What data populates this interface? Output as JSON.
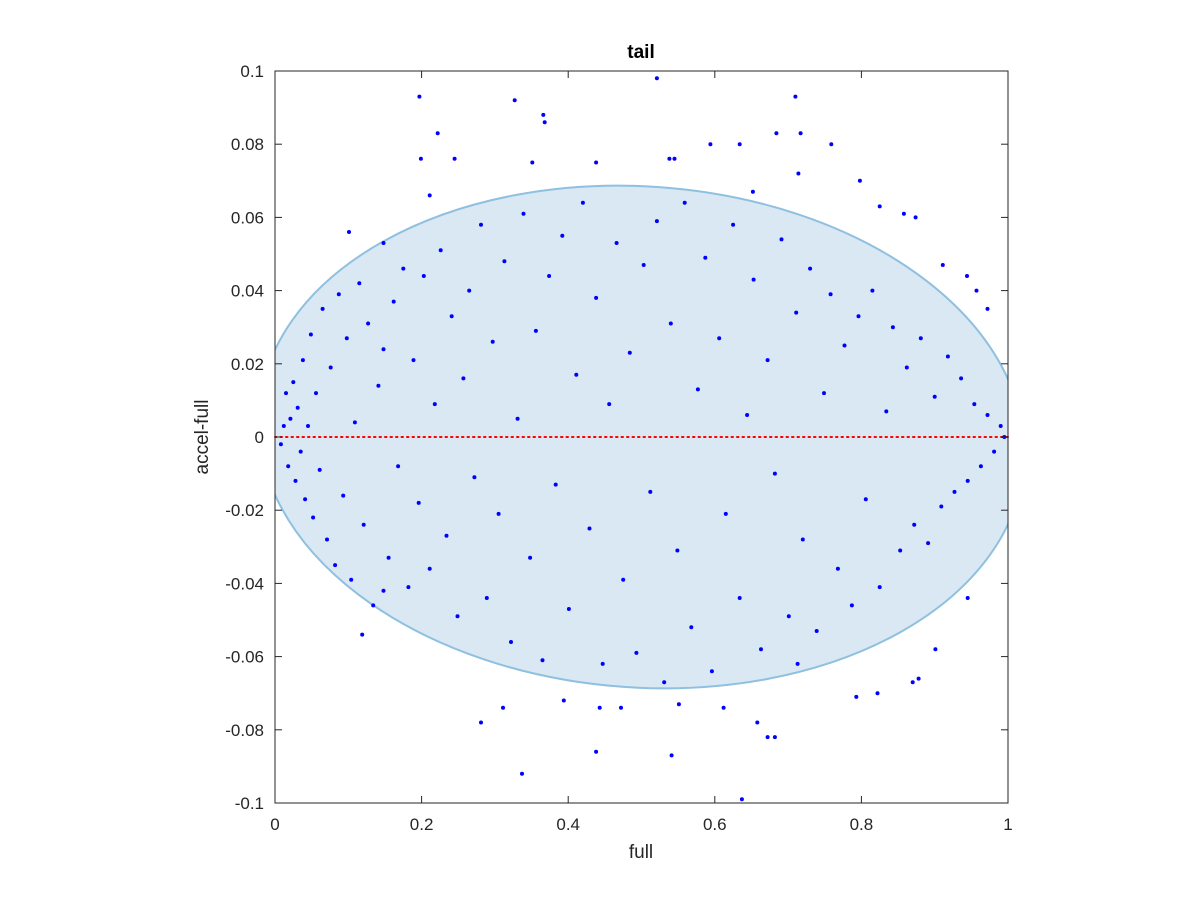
{
  "chart_data": {
    "type": "scatter",
    "title": "tail",
    "xlabel": "full",
    "ylabel": "accel-full",
    "xlim": [
      0,
      1
    ],
    "ylim": [
      -0.1,
      0.1
    ],
    "x_ticks": [
      0,
      0.2,
      0.4,
      0.6,
      0.8,
      1
    ],
    "x_tick_labels": [
      "0",
      "0.2",
      "0.4",
      "0.6",
      "0.8",
      "1"
    ],
    "y_ticks": [
      -0.1,
      -0.08,
      -0.06,
      -0.04,
      -0.02,
      0,
      0.02,
      0.04,
      0.06,
      0.08,
      0.1
    ],
    "y_tick_labels": [
      "-0.1",
      "-0.08",
      "-0.06",
      "-0.04",
      "-0.02",
      "0",
      "0.02",
      "0.04",
      "0.06",
      "0.08",
      "0.1"
    ],
    "grid": false,
    "box": true,
    "reference_line": {
      "y": 0,
      "style": "dotted",
      "color": "#ff0000"
    },
    "region": {
      "shape": "tilted-ellipse",
      "fill": "#d9e8f3",
      "stroke": "#8fc0df",
      "approx_top_at": [
        0.43,
        0.069
      ],
      "approx_bottom_at": [
        0.57,
        -0.069
      ],
      "approx_left_at": [
        0.0,
        0.007
      ],
      "approx_right_at": [
        1.0,
        -0.007
      ]
    },
    "series": [
      {
        "color": "#0000ff",
        "marker": "dot",
        "points": [
          [
            0.197,
            0.093
          ],
          [
            0.521,
            0.098
          ],
          [
            0.71,
            0.093
          ],
          [
            0.327,
            0.092
          ],
          [
            0.366,
            0.088
          ],
          [
            0.368,
            0.086
          ],
          [
            0.222,
            0.083
          ],
          [
            0.684,
            0.083
          ],
          [
            0.717,
            0.083
          ],
          [
            0.199,
            0.076
          ],
          [
            0.245,
            0.076
          ],
          [
            0.351,
            0.075
          ],
          [
            0.438,
            0.075
          ],
          [
            0.538,
            0.076
          ],
          [
            0.545,
            0.076
          ],
          [
            0.594,
            0.08
          ],
          [
            0.634,
            0.08
          ],
          [
            0.759,
            0.08
          ],
          [
            0.798,
            0.07
          ],
          [
            0.825,
            0.063
          ],
          [
            0.211,
            0.066
          ],
          [
            0.652,
            0.067
          ],
          [
            0.714,
            0.072
          ],
          [
            0.858,
            0.061
          ],
          [
            0.874,
            0.06
          ],
          [
            0.101,
            0.056
          ],
          [
            0.148,
            0.053
          ],
          [
            0.911,
            0.047
          ],
          [
            0.944,
            0.044
          ],
          [
            0.957,
            0.04
          ],
          [
            0.972,
            0.035
          ],
          [
            0.119,
            -0.054
          ],
          [
            0.148,
            -0.042
          ],
          [
            0.281,
            -0.078
          ],
          [
            0.311,
            -0.074
          ],
          [
            0.337,
            -0.092
          ],
          [
            0.394,
            -0.072
          ],
          [
            0.438,
            -0.086
          ],
          [
            0.443,
            -0.074
          ],
          [
            0.472,
            -0.074
          ],
          [
            0.541,
            -0.087
          ],
          [
            0.551,
            -0.073
          ],
          [
            0.612,
            -0.074
          ],
          [
            0.637,
            -0.099
          ],
          [
            0.658,
            -0.078
          ],
          [
            0.672,
            -0.082
          ],
          [
            0.682,
            -0.082
          ],
          [
            0.713,
            -0.062
          ],
          [
            0.793,
            -0.071
          ],
          [
            0.822,
            -0.07
          ],
          [
            0.87,
            -0.067
          ],
          [
            0.878,
            -0.066
          ],
          [
            0.901,
            -0.058
          ],
          [
            0.945,
            -0.044
          ],
          [
            0.008,
            -0.002
          ],
          [
            0.012,
            0.003
          ],
          [
            0.015,
            0.012
          ],
          [
            0.018,
            -0.008
          ],
          [
            0.021,
            0.005
          ],
          [
            0.025,
            0.015
          ],
          [
            0.028,
            -0.012
          ],
          [
            0.031,
            0.008
          ],
          [
            0.035,
            -0.004
          ],
          [
            0.038,
            0.021
          ],
          [
            0.041,
            -0.017
          ],
          [
            0.045,
            0.003
          ],
          [
            0.049,
            0.028
          ],
          [
            0.052,
            -0.022
          ],
          [
            0.056,
            0.012
          ],
          [
            0.061,
            -0.009
          ],
          [
            0.065,
            0.035
          ],
          [
            0.071,
            -0.028
          ],
          [
            0.076,
            0.019
          ],
          [
            0.082,
            -0.035
          ],
          [
            0.087,
            0.039
          ],
          [
            0.093,
            -0.016
          ],
          [
            0.098,
            0.027
          ],
          [
            0.104,
            -0.039
          ],
          [
            0.109,
            0.004
          ],
          [
            0.115,
            0.042
          ],
          [
            0.121,
            -0.024
          ],
          [
            0.127,
            0.031
          ],
          [
            0.134,
            -0.046
          ],
          [
            0.141,
            0.014
          ],
          [
            0.148,
            0.024
          ],
          [
            0.155,
            -0.033
          ],
          [
            0.162,
            0.037
          ],
          [
            0.168,
            -0.008
          ],
          [
            0.175,
            0.046
          ],
          [
            0.182,
            -0.041
          ],
          [
            0.189,
            0.021
          ],
          [
            0.196,
            -0.018
          ],
          [
            0.203,
            0.044
          ],
          [
            0.211,
            -0.036
          ],
          [
            0.218,
            0.009
          ],
          [
            0.226,
            0.051
          ],
          [
            0.234,
            -0.027
          ],
          [
            0.241,
            0.033
          ],
          [
            0.249,
            -0.049
          ],
          [
            0.257,
            0.016
          ],
          [
            0.265,
            0.04
          ],
          [
            0.272,
            -0.011
          ],
          [
            0.281,
            0.058
          ],
          [
            0.289,
            -0.044
          ],
          [
            0.297,
            0.026
          ],
          [
            0.305,
            -0.021
          ],
          [
            0.313,
            0.048
          ],
          [
            0.322,
            -0.056
          ],
          [
            0.331,
            0.005
          ],
          [
            0.339,
            0.061
          ],
          [
            0.348,
            -0.033
          ],
          [
            0.356,
            0.029
          ],
          [
            0.365,
            -0.061
          ],
          [
            0.374,
            0.044
          ],
          [
            0.383,
            -0.013
          ],
          [
            0.392,
            0.055
          ],
          [
            0.401,
            -0.047
          ],
          [
            0.411,
            0.017
          ],
          [
            0.42,
            0.064
          ],
          [
            0.429,
            -0.025
          ],
          [
            0.438,
            0.038
          ],
          [
            0.447,
            -0.062
          ],
          [
            0.456,
            0.009
          ],
          [
            0.466,
            0.053
          ],
          [
            0.475,
            -0.039
          ],
          [
            0.484,
            0.023
          ],
          [
            0.493,
            -0.059
          ],
          [
            0.503,
            0.047
          ],
          [
            0.512,
            -0.015
          ],
          [
            0.521,
            0.059
          ],
          [
            0.531,
            -0.067
          ],
          [
            0.54,
            0.031
          ],
          [
            0.549,
            -0.031
          ],
          [
            0.559,
            0.064
          ],
          [
            0.568,
            -0.052
          ],
          [
            0.577,
            0.013
          ],
          [
            0.587,
            0.049
          ],
          [
            0.596,
            -0.064
          ],
          [
            0.606,
            0.027
          ],
          [
            0.615,
            -0.021
          ],
          [
            0.625,
            0.058
          ],
          [
            0.634,
            -0.044
          ],
          [
            0.644,
            0.006
          ],
          [
            0.653,
            0.043
          ],
          [
            0.663,
            -0.058
          ],
          [
            0.672,
            0.021
          ],
          [
            0.682,
            -0.01
          ],
          [
            0.691,
            0.054
          ],
          [
            0.701,
            -0.049
          ],
          [
            0.711,
            0.034
          ],
          [
            0.72,
            -0.028
          ],
          [
            0.73,
            0.046
          ],
          [
            0.739,
            -0.053
          ],
          [
            0.749,
            0.012
          ],
          [
            0.758,
            0.039
          ],
          [
            0.768,
            -0.036
          ],
          [
            0.777,
            0.025
          ],
          [
            0.787,
            -0.046
          ],
          [
            0.796,
            0.033
          ],
          [
            0.806,
            -0.017
          ],
          [
            0.815,
            0.04
          ],
          [
            0.825,
            -0.041
          ],
          [
            0.834,
            0.007
          ],
          [
            0.843,
            0.03
          ],
          [
            0.853,
            -0.031
          ],
          [
            0.862,
            0.019
          ],
          [
            0.872,
            -0.024
          ],
          [
            0.881,
            0.027
          ],
          [
            0.891,
            -0.029
          ],
          [
            0.9,
            0.011
          ],
          [
            0.909,
            -0.019
          ],
          [
            0.918,
            0.022
          ],
          [
            0.927,
            -0.015
          ],
          [
            0.936,
            0.016
          ],
          [
            0.945,
            -0.012
          ],
          [
            0.954,
            0.009
          ],
          [
            0.963,
            -0.008
          ],
          [
            0.972,
            0.006
          ],
          [
            0.981,
            -0.004
          ],
          [
            0.99,
            0.003
          ],
          [
            0.995,
            0.0
          ]
        ]
      }
    ]
  }
}
